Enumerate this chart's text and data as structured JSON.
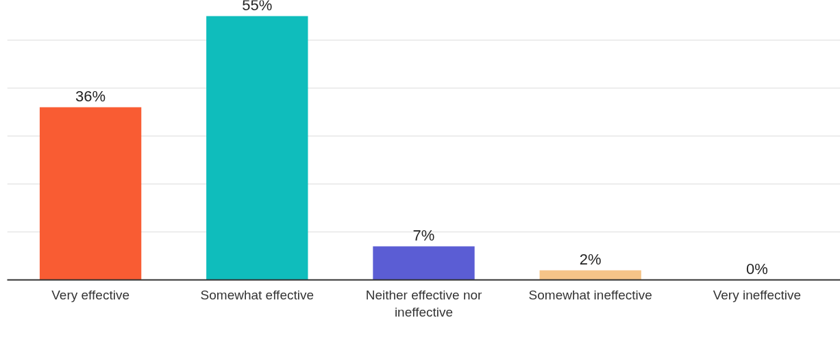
{
  "chart_data": {
    "type": "bar",
    "categories": [
      "Very effective",
      "Somewhat effective",
      "Neither effective nor ineffective",
      "Somewhat ineffective",
      "Very ineffective"
    ],
    "values": [
      36,
      55,
      7,
      2,
      0
    ],
    "value_labels": [
      "36%",
      "55%",
      "7%",
      "2%",
      "0%"
    ],
    "colors": [
      "#f95c33",
      "#0fbdbc",
      "#5b5dd4",
      "#f5c488",
      "#cccccc"
    ],
    "grid": "y",
    "tick_labels": "x"
  }
}
